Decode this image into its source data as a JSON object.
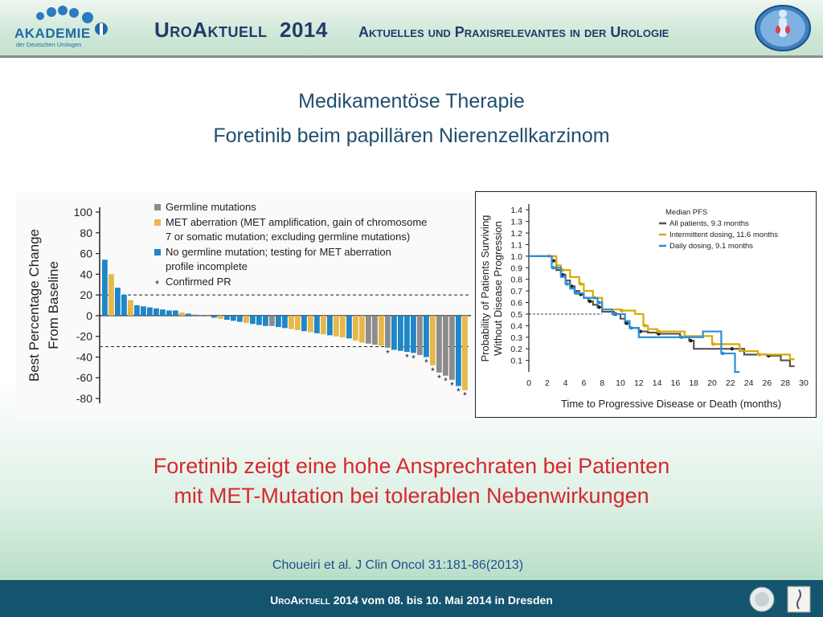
{
  "header": {
    "logo_text": "AKADEMIE",
    "logo_sub": "der Deutschen Urologen",
    "title": "UroAktuell",
    "year": "2014",
    "subtitle": "Aktuelles und Praxisrelevantes in der Urologie"
  },
  "slide": {
    "title": "Medikamentöse Therapie",
    "subtitle": "Foretinib beim papillären Nierenzellkarzinom",
    "conclusion_line1": "Foretinib zeigt eine hohe Ansprechraten bei Patienten",
    "conclusion_line2": "mit MET-Mutation bei tolerablen Nebenwirkungen",
    "citation": "Choueiri et al.   J Clin Oncol   31:181-86(2013)"
  },
  "footer": {
    "brand": "UroAktuell",
    "text": "2014  vom 08. bis 10. Mai 2014  in Dresden"
  },
  "colors": {
    "germline": "#8c8c8c",
    "met_aberration": "#e6b84a",
    "no_germline": "#1f86c8",
    "all_patients": "#555555",
    "intermittent": "#d9a800",
    "daily": "#2a8fd6"
  },
  "chart_data": [
    {
      "type": "bar",
      "ylabel": "Best Percentage Change From Baseline",
      "yticks": [
        "100",
        "80",
        "60",
        "40",
        "20",
        "0",
        "-20",
        "-40",
        "-60",
        "-80"
      ],
      "ylim": [
        -85,
        105
      ],
      "reference_lines": [
        20,
        -30
      ],
      "legend": [
        {
          "key": "germline",
          "label": "Germline mutations"
        },
        {
          "key": "met_aberration",
          "label": "MET aberration (MET amplification, gain of chromosome 7 or somatic mutation; excluding germline mutations)"
        },
        {
          "key": "no_germline",
          "label": "No germline mutation; testing for MET aberration profile incomplete"
        },
        {
          "key": "confirmed",
          "label": "Confirmed PR",
          "symbol": "*"
        }
      ],
      "bars": [
        {
          "v": 54,
          "g": "no_germline"
        },
        {
          "v": 40,
          "g": "met_aberration"
        },
        {
          "v": 27,
          "g": "no_germline"
        },
        {
          "v": 20,
          "g": "no_germline"
        },
        {
          "v": 15,
          "g": "met_aberration"
        },
        {
          "v": 10,
          "g": "no_germline"
        },
        {
          "v": 9,
          "g": "no_germline"
        },
        {
          "v": 8,
          "g": "no_germline"
        },
        {
          "v": 7,
          "g": "no_germline"
        },
        {
          "v": 6,
          "g": "no_germline"
        },
        {
          "v": 5,
          "g": "no_germline"
        },
        {
          "v": 5,
          "g": "no_germline"
        },
        {
          "v": 3,
          "g": "met_aberration"
        },
        {
          "v": 2,
          "g": "no_germline"
        },
        {
          "v": 1,
          "g": "germline"
        },
        {
          "v": 0.5,
          "g": "no_germline"
        },
        {
          "v": -1,
          "g": "met_aberration"
        },
        {
          "v": -2,
          "g": "no_germline"
        },
        {
          "v": -3,
          "g": "met_aberration"
        },
        {
          "v": -4,
          "g": "no_germline"
        },
        {
          "v": -5,
          "g": "no_germline"
        },
        {
          "v": -6,
          "g": "no_germline"
        },
        {
          "v": -7,
          "g": "met_aberration"
        },
        {
          "v": -8,
          "g": "no_germline"
        },
        {
          "v": -9,
          "g": "no_germline"
        },
        {
          "v": -10,
          "g": "no_germline"
        },
        {
          "v": -10,
          "g": "germline"
        },
        {
          "v": -11,
          "g": "no_germline"
        },
        {
          "v": -12,
          "g": "no_germline"
        },
        {
          "v": -13,
          "g": "met_aberration"
        },
        {
          "v": -14,
          "g": "met_aberration"
        },
        {
          "v": -15,
          "g": "no_germline"
        },
        {
          "v": -16,
          "g": "met_aberration"
        },
        {
          "v": -17,
          "g": "no_germline"
        },
        {
          "v": -18,
          "g": "met_aberration"
        },
        {
          "v": -19,
          "g": "no_germline"
        },
        {
          "v": -20,
          "g": "met_aberration"
        },
        {
          "v": -21,
          "g": "met_aberration"
        },
        {
          "v": -22,
          "g": "no_germline"
        },
        {
          "v": -24,
          "g": "met_aberration"
        },
        {
          "v": -26,
          "g": "met_aberration"
        },
        {
          "v": -27,
          "g": "germline"
        },
        {
          "v": -28,
          "g": "germline"
        },
        {
          "v": -29,
          "g": "met_aberration"
        },
        {
          "v": -31,
          "g": "germline",
          "pr": true
        },
        {
          "v": -33,
          "g": "no_germline"
        },
        {
          "v": -34,
          "g": "no_germline"
        },
        {
          "v": -35,
          "g": "no_germline",
          "pr": true
        },
        {
          "v": -36,
          "g": "no_germline",
          "pr": true
        },
        {
          "v": -38,
          "g": "germline"
        },
        {
          "v": -40,
          "g": "no_germline",
          "pr": true
        },
        {
          "v": -48,
          "g": "met_aberration",
          "pr": true
        },
        {
          "v": -55,
          "g": "germline",
          "pr": true
        },
        {
          "v": -58,
          "g": "germline",
          "pr": true
        },
        {
          "v": -62,
          "g": "germline",
          "pr": true
        },
        {
          "v": -68,
          "g": "no_germline",
          "pr": true
        },
        {
          "v": -72,
          "g": "met_aberration",
          "pr": true
        }
      ]
    },
    {
      "type": "line",
      "xlabel": "Time to Progressive Disease or Death (months)",
      "ylabel": "Probability of Patients Surviving Without Disease Progression",
      "xticks": [
        "0",
        "2",
        "4",
        "6",
        "8",
        "10",
        "12",
        "14",
        "16",
        "18",
        "20",
        "22",
        "24",
        "26",
        "28",
        "30"
      ],
      "yticks": [
        "1.4",
        "1.3",
        "1.2",
        "1.1",
        "1.0",
        "0.9",
        "0.8",
        "0.7",
        "0.6",
        "0.5",
        "0.4",
        "0.3",
        "0.2",
        "0.1"
      ],
      "xlim": [
        0,
        30
      ],
      "ylim": [
        0,
        1.4
      ],
      "median_line": 0.5,
      "legend_title": "Median PFS",
      "series": [
        {
          "name": "All patients, 9.3 months",
          "color_key": "all_patients",
          "x": [
            0,
            1.5,
            2.5,
            3.0,
            3.5,
            4.0,
            4.5,
            5.0,
            5.5,
            6.0,
            6.5,
            7.0,
            7.5,
            8.0,
            9.3,
            10.0,
            10.5,
            11.0,
            12.0,
            13.0,
            14.0,
            16.5,
            17.5,
            18.0,
            22.0,
            23.5,
            26.0,
            27.5,
            28.5
          ],
          "y": [
            1.0,
            1.0,
            0.96,
            0.88,
            0.84,
            0.79,
            0.74,
            0.7,
            0.67,
            0.64,
            0.61,
            0.58,
            0.56,
            0.52,
            0.5,
            0.46,
            0.42,
            0.38,
            0.35,
            0.34,
            0.33,
            0.3,
            0.27,
            0.2,
            0.2,
            0.15,
            0.14,
            0.1,
            0.05
          ]
        },
        {
          "name": "Intermittent dosing, 11.6 months",
          "color_key": "intermittent",
          "x": [
            0,
            2.0,
            3.0,
            3.5,
            4.5,
            5.5,
            6.0,
            7.0,
            8.0,
            10.0,
            11.6,
            12.5,
            13.0,
            14.0,
            17.0,
            20.0,
            23.0,
            25.0,
            28.5
          ],
          "y": [
            1.0,
            1.0,
            0.92,
            0.88,
            0.82,
            0.76,
            0.7,
            0.64,
            0.54,
            0.53,
            0.5,
            0.4,
            0.37,
            0.35,
            0.31,
            0.24,
            0.18,
            0.15,
            0.11
          ]
        },
        {
          "name": "Daily dosing, 9.1 months",
          "color_key": "daily",
          "x": [
            0,
            1.5,
            2.5,
            3.5,
            4.0,
            4.5,
            5.0,
            6.0,
            7.5,
            8.0,
            9.1,
            10.5,
            11.0,
            12.0,
            16.5,
            19.0,
            21.0,
            22.5,
            22.5
          ],
          "y": [
            1.0,
            1.0,
            0.9,
            0.82,
            0.76,
            0.72,
            0.68,
            0.64,
            0.6,
            0.54,
            0.5,
            0.44,
            0.38,
            0.3,
            0.3,
            0.35,
            0.16,
            0.16,
            0.0
          ]
        }
      ]
    }
  ]
}
